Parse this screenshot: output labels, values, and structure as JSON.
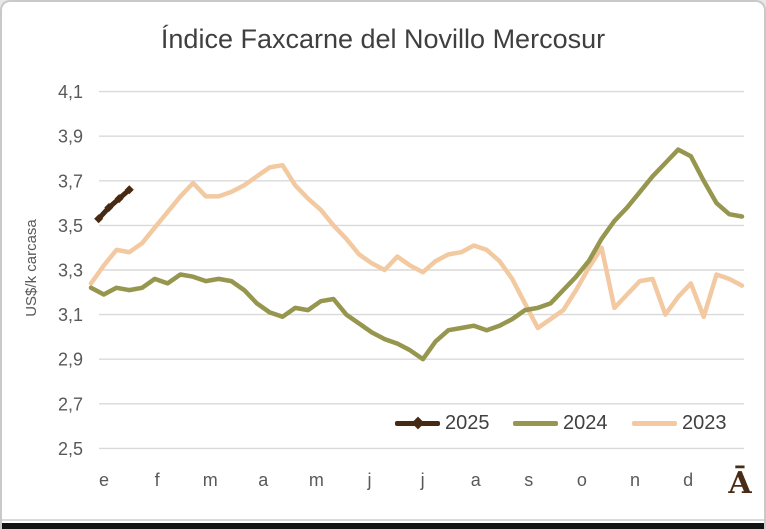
{
  "chart_data": {
    "type": "line",
    "title": "Índice Faxcarne del Novillo Mercosur",
    "ylabel": "US$/k carcasa",
    "xlabel": "",
    "ylim": [
      2.5,
      4.1
    ],
    "grid": "horizontal",
    "gridline_color": "#d9d9d9",
    "text_color": "#595959",
    "title_color": "#3f3f3f",
    "y_ticks": [
      4.1,
      3.9,
      3.7,
      3.5,
      3.3,
      3.1,
      2.9,
      2.7,
      2.5
    ],
    "y_tick_labels": [
      "4,1",
      "3,9",
      "3,7",
      "3,5",
      "3,3",
      "3,1",
      "2,9",
      "2,7",
      "2,5"
    ],
    "x_tick_labels": [
      "e",
      "f",
      "m",
      "a",
      "m",
      "j",
      "j",
      "a",
      "s",
      "o",
      "n",
      "d"
    ],
    "watermark": "Ā",
    "legend_position": "bottom-inside",
    "series": [
      {
        "name": "2025",
        "color": "#472a13",
        "marker": "diamond",
        "week_positions": [
          0.6,
          1.4,
          2.2,
          3.0
        ],
        "values": [
          3.53,
          3.58,
          3.62,
          3.66
        ]
      },
      {
        "name": "2024",
        "color": "#96964f",
        "marker": "none",
        "values": [
          3.22,
          3.19,
          3.22,
          3.21,
          3.22,
          3.26,
          3.24,
          3.28,
          3.27,
          3.25,
          3.26,
          3.25,
          3.21,
          3.15,
          3.11,
          3.09,
          3.13,
          3.12,
          3.16,
          3.17,
          3.1,
          3.06,
          3.02,
          2.99,
          2.97,
          2.94,
          2.9,
          2.98,
          3.03,
          3.04,
          3.05,
          3.03,
          3.05,
          3.08,
          3.12,
          3.13,
          3.15,
          3.21,
          3.27,
          3.34,
          3.44,
          3.52,
          3.58,
          3.65,
          3.72,
          3.78,
          3.84,
          3.81,
          3.7,
          3.6,
          3.55,
          3.54
        ]
      },
      {
        "name": "2023",
        "color": "#f2c9a0",
        "marker": "none",
        "values": [
          3.24,
          3.32,
          3.39,
          3.38,
          3.42,
          3.49,
          3.56,
          3.63,
          3.69,
          3.63,
          3.63,
          3.65,
          3.68,
          3.72,
          3.76,
          3.77,
          3.68,
          3.62,
          3.57,
          3.5,
          3.44,
          3.37,
          3.33,
          3.3,
          3.36,
          3.32,
          3.29,
          3.34,
          3.37,
          3.38,
          3.41,
          3.39,
          3.34,
          3.26,
          3.15,
          3.04,
          3.08,
          3.12,
          3.21,
          3.31,
          3.4,
          3.13,
          3.19,
          3.25,
          3.26,
          3.1,
          3.18,
          3.24,
          3.09,
          3.28,
          3.26,
          3.23
        ]
      }
    ]
  }
}
